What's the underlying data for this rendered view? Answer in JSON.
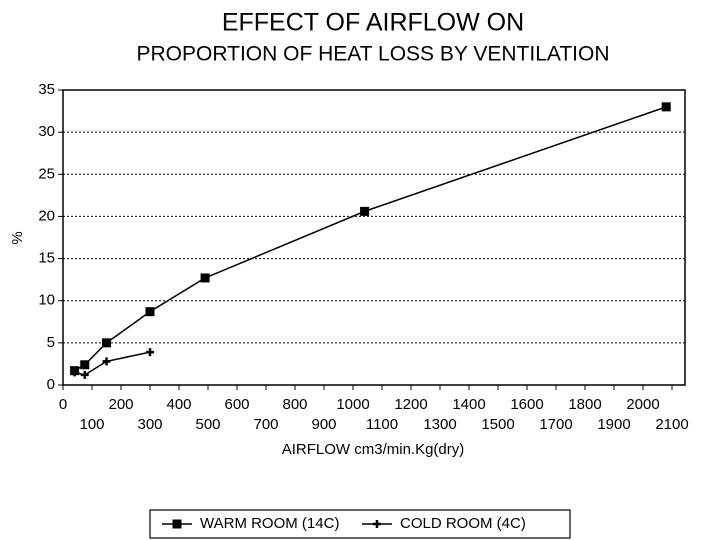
{
  "chart_data": {
    "type": "line",
    "title": "EFFECT OF AIRFLOW ON",
    "subtitle": "PROPORTION OF HEAT LOSS BY VENTILATION",
    "x_label": "AIRFLOW cm3/min.Kg(dry)",
    "y_label": "%",
    "xlim": [
      0,
      2100
    ],
    "xticks": [
      0,
      100,
      200,
      300,
      400,
      500,
      600,
      700,
      800,
      900,
      1000,
      1100,
      1200,
      1300,
      1400,
      1500,
      1600,
      1700,
      1800,
      1900,
      2000,
      2100
    ],
    "ylim": [
      0,
      35
    ],
    "yticks": [
      0,
      5,
      10,
      15,
      20,
      25,
      30,
      35
    ],
    "grid": true,
    "legend": "bottom",
    "series": [
      {
        "name": "WARM ROOM (14C)",
        "color": "#000000",
        "marker": "square",
        "x": [
          40,
          75,
          150,
          300,
          490,
          1040,
          2080
        ],
        "values": [
          1.7,
          2.4,
          5.0,
          8.7,
          12.7,
          20.6,
          33.0
        ]
      },
      {
        "name": "COLD ROOM (4C)",
        "color": "#000000",
        "marker": "plus",
        "x": [
          40,
          75,
          150,
          300
        ],
        "values": [
          1.5,
          1.2,
          2.8,
          3.9
        ]
      }
    ]
  }
}
